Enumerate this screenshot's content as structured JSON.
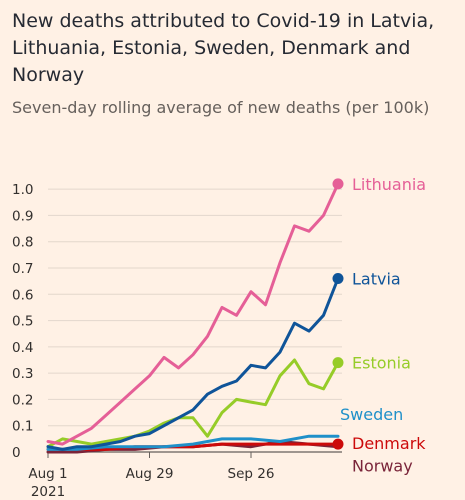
{
  "header": {
    "title": "New deaths attributed to Covid-19 in Latvia, Lithuania, Estonia, Sweden, Denmark and Norway",
    "subtitle": "Seven-day rolling average of new deaths (per 100k)"
  },
  "chart_data": {
    "type": "line",
    "x_start": "2021-08-01",
    "x_end": "2021-10-20",
    "xticks": [
      {
        "date": "2021-08-01",
        "label": "Aug 1",
        "sublabel": "2021"
      },
      {
        "date": "2021-08-29",
        "label": "Aug 29",
        "sublabel": ""
      },
      {
        "date": "2021-09-26",
        "label": "Sep 26",
        "sublabel": ""
      }
    ],
    "ylim": [
      0,
      1.05
    ],
    "yticks": [
      0,
      0.1,
      0.2,
      0.3,
      0.4,
      0.5,
      0.6,
      0.7,
      0.8,
      0.9,
      1.0
    ],
    "ytick_labels": [
      "0",
      "0.1",
      "0.2",
      "0.3",
      "0.4",
      "0.5",
      "0.6",
      "0.7",
      "0.8",
      "0.9",
      "1.0"
    ],
    "grid": true,
    "series": [
      {
        "name": "Lithuania",
        "color": "#e55f97",
        "x": [
          "2021-08-01",
          "2021-08-05",
          "2021-08-09",
          "2021-08-13",
          "2021-08-17",
          "2021-08-21",
          "2021-08-25",
          "2021-08-29",
          "2021-09-02",
          "2021-09-06",
          "2021-09-10",
          "2021-09-14",
          "2021-09-18",
          "2021-09-22",
          "2021-09-26",
          "2021-09-30",
          "2021-10-04",
          "2021-10-08",
          "2021-10-12",
          "2021-10-16",
          "2021-10-20"
        ],
        "values": [
          0.04,
          0.03,
          0.06,
          0.09,
          0.14,
          0.19,
          0.24,
          0.29,
          0.36,
          0.32,
          0.37,
          0.44,
          0.55,
          0.52,
          0.61,
          0.56,
          0.72,
          0.86,
          0.84,
          0.9,
          1.02
        ]
      },
      {
        "name": "Latvia",
        "color": "#0f5499",
        "x": [
          "2021-08-01",
          "2021-08-05",
          "2021-08-09",
          "2021-08-13",
          "2021-08-17",
          "2021-08-21",
          "2021-08-25",
          "2021-08-29",
          "2021-09-02",
          "2021-09-06",
          "2021-09-10",
          "2021-09-14",
          "2021-09-18",
          "2021-09-22",
          "2021-09-26",
          "2021-09-30",
          "2021-10-04",
          "2021-10-08",
          "2021-10-12",
          "2021-10-16",
          "2021-10-20"
        ],
        "values": [
          0.02,
          0.01,
          0.02,
          0.02,
          0.03,
          0.04,
          0.06,
          0.07,
          0.1,
          0.13,
          0.16,
          0.22,
          0.25,
          0.27,
          0.33,
          0.32,
          0.38,
          0.49,
          0.46,
          0.52,
          0.66
        ]
      },
      {
        "name": "Estonia",
        "color": "#96cc28",
        "x": [
          "2021-08-01",
          "2021-08-05",
          "2021-08-09",
          "2021-08-13",
          "2021-08-17",
          "2021-08-21",
          "2021-08-25",
          "2021-08-29",
          "2021-09-02",
          "2021-09-06",
          "2021-09-10",
          "2021-09-14",
          "2021-09-18",
          "2021-09-22",
          "2021-09-26",
          "2021-09-30",
          "2021-10-04",
          "2021-10-08",
          "2021-10-12",
          "2021-10-16",
          "2021-10-20"
        ],
        "values": [
          0.02,
          0.05,
          0.04,
          0.03,
          0.04,
          0.05,
          0.06,
          0.08,
          0.11,
          0.13,
          0.13,
          0.06,
          0.15,
          0.2,
          0.19,
          0.18,
          0.29,
          0.35,
          0.26,
          0.24,
          0.34
        ]
      },
      {
        "name": "Sweden",
        "color": "#1f90c9",
        "x": [
          "2021-08-01",
          "2021-08-09",
          "2021-08-17",
          "2021-08-25",
          "2021-09-02",
          "2021-09-10",
          "2021-09-18",
          "2021-09-26",
          "2021-10-04",
          "2021-10-12",
          "2021-10-20"
        ],
        "values": [
          0.01,
          0.01,
          0.02,
          0.02,
          0.02,
          0.03,
          0.05,
          0.05,
          0.04,
          0.06,
          0.06
        ]
      },
      {
        "name": "Denmark",
        "color": "#cc0a0a",
        "x": [
          "2021-08-01",
          "2021-08-09",
          "2021-08-17",
          "2021-08-25",
          "2021-09-02",
          "2021-09-10",
          "2021-09-18",
          "2021-09-26",
          "2021-10-04",
          "2021-10-12",
          "2021-10-20"
        ],
        "values": [
          0.01,
          0.01,
          0.01,
          0.02,
          0.02,
          0.02,
          0.03,
          0.03,
          0.03,
          0.03,
          0.03
        ]
      },
      {
        "name": "Norway",
        "color": "#7a2439",
        "x": [
          "2021-08-01",
          "2021-08-09",
          "2021-08-17",
          "2021-08-25",
          "2021-09-02",
          "2021-09-10",
          "2021-09-18",
          "2021-09-26",
          "2021-10-04",
          "2021-10-12",
          "2021-10-20"
        ],
        "values": [
          0.0,
          0.0,
          0.01,
          0.01,
          0.02,
          0.02,
          0.03,
          0.02,
          0.04,
          0.03,
          0.02
        ]
      }
    ]
  }
}
